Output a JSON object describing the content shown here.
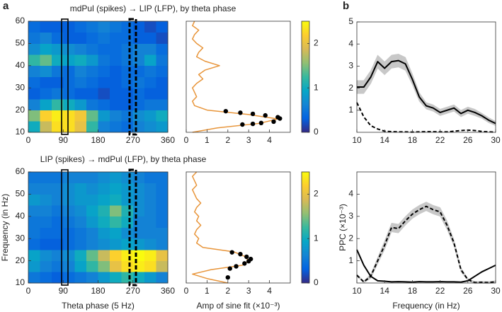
{
  "panel_labels": [
    "a",
    "b"
  ],
  "chart_data": [
    {
      "type": "heatmap",
      "title": "mdPul (spikes) → LIP (LFP), by theta phase",
      "colormap": "parula",
      "x_bins": [
        0,
        30,
        60,
        90,
        120,
        150,
        180,
        210,
        240,
        270,
        300,
        330,
        360
      ],
      "y_bins": [
        10,
        15,
        20,
        25,
        30,
        35,
        40,
        45,
        50,
        55,
        60
      ],
      "z": [
        [
          1.0,
          1.8,
          2.3,
          2.3,
          2.0,
          1.2,
          0.6,
          0.5,
          0.4,
          0.6,
          0.7,
          0.8
        ],
        [
          1.5,
          2.2,
          2.4,
          2.3,
          2.1,
          1.4,
          0.8,
          0.6,
          0.5,
          0.7,
          0.8,
          1.0
        ],
        [
          0.6,
          0.9,
          1.2,
          1.0,
          0.8,
          0.5,
          0.4,
          0.3,
          0.3,
          0.4,
          0.5,
          0.5
        ],
        [
          0.3,
          0.4,
          0.5,
          0.4,
          0.3,
          0.3,
          0.2,
          0.3,
          0.3,
          0.4,
          0.3,
          0.3
        ],
        [
          0.4,
          0.3,
          0.3,
          0.4,
          0.5,
          0.4,
          0.3,
          0.3,
          0.4,
          0.5,
          0.4,
          0.3
        ],
        [
          0.6,
          0.7,
          0.5,
          0.4,
          0.6,
          0.5,
          0.4,
          0.3,
          0.4,
          0.4,
          0.5,
          0.4
        ],
        [
          1.2,
          1.4,
          1.0,
          0.9,
          1.0,
          0.8,
          0.5,
          0.4,
          0.5,
          0.6,
          0.9,
          0.5
        ],
        [
          0.7,
          0.9,
          0.8,
          0.7,
          0.6,
          0.5,
          0.4,
          0.4,
          0.5,
          0.6,
          0.6,
          0.4
        ],
        [
          0.5,
          0.6,
          0.4,
          0.3,
          0.3,
          0.4,
          0.5,
          0.4,
          0.4,
          0.3,
          0.3,
          0.2
        ],
        [
          0.4,
          0.3,
          0.3,
          0.3,
          0.4,
          0.5,
          0.6,
          0.5,
          0.4,
          0.3,
          0.2,
          0.3
        ]
      ],
      "xlim": [
        0,
        360
      ],
      "xticks": [
        0,
        90,
        180,
        270,
        360
      ],
      "ylim": [
        10,
        60
      ],
      "yticks": [
        10,
        20,
        30,
        40,
        50,
        60
      ],
      "clim": [
        0,
        2.5
      ],
      "cticks": [
        0,
        1,
        2
      ]
    },
    {
      "type": "line",
      "orientation": "horizontal",
      "y": [
        10,
        12,
        14,
        16,
        18,
        20,
        22,
        24,
        26,
        28,
        30,
        32,
        34,
        36,
        38,
        40,
        42,
        44,
        46,
        48,
        50,
        52,
        54,
        56,
        58,
        60
      ],
      "series": [
        {
          "color": "#e8953a",
          "values": [
            0.3,
            1.5,
            3.5,
            4.4,
            3.0,
            1.0,
            0.4,
            0.3,
            0.5,
            0.4,
            0.3,
            0.5,
            0.8,
            0.6,
            0.9,
            1.6,
            0.9,
            0.5,
            0.6,
            0.8,
            0.5,
            0.3,
            0.4,
            0.6,
            0.3,
            0.4
          ]
        }
      ],
      "points": {
        "color": "#000000",
        "values": [
          2.7,
          3.2,
          3.6,
          4.2,
          4.5,
          4.4,
          3.8,
          3.2,
          2.6,
          1.9
        ],
        "y": [
          13.5,
          13.8,
          14.2,
          14.8,
          16.2,
          16.8,
          17.6,
          18.3,
          18.8,
          19.5
        ]
      },
      "xlim": [
        0,
        5
      ],
      "xticks": [
        0,
        1,
        2,
        3,
        4
      ],
      "ylim": [
        10,
        60
      ]
    },
    {
      "type": "heatmap",
      "title": "LIP (spikes) → mdPul (LFP), by theta phase",
      "colormap": "parula",
      "xlabel": "Theta phase (5 Hz)",
      "ylabel": "Frequency (in Hz)",
      "x_bins": [
        0,
        30,
        60,
        90,
        120,
        150,
        180,
        210,
        240,
        270,
        300,
        330,
        360
      ],
      "y_bins": [
        10,
        15,
        20,
        25,
        30,
        35,
        40,
        45,
        50,
        55,
        60
      ],
      "z": [
        [
          0.5,
          0.4,
          0.3,
          0.4,
          0.5,
          0.6,
          0.8,
          1.0,
          1.2,
          1.0,
          0.8,
          0.6
        ],
        [
          0.8,
          0.6,
          0.5,
          0.6,
          0.9,
          1.2,
          1.5,
          2.0,
          2.3,
          2.4,
          2.3,
          1.8
        ],
        [
          0.9,
          0.7,
          0.6,
          0.7,
          1.0,
          1.4,
          1.8,
          2.2,
          2.4,
          2.5,
          2.4,
          2.0
        ],
        [
          0.4,
          0.3,
          0.3,
          0.4,
          0.5,
          0.6,
          0.7,
          0.8,
          0.9,
          0.8,
          0.7,
          0.6
        ],
        [
          0.5,
          0.4,
          0.4,
          0.4,
          0.5,
          0.6,
          0.8,
          0.9,
          0.7,
          0.6,
          0.6,
          0.6
        ],
        [
          0.5,
          0.5,
          0.4,
          0.5,
          0.6,
          0.8,
          1.0,
          1.2,
          1.0,
          0.6,
          0.6,
          0.5
        ],
        [
          0.6,
          0.6,
          0.5,
          0.6,
          0.7,
          0.9,
          1.1,
          1.5,
          1.1,
          0.7,
          0.6,
          0.5
        ],
        [
          0.8,
          0.7,
          0.6,
          0.7,
          0.8,
          0.8,
          0.9,
          1.0,
          0.8,
          0.7,
          0.6,
          0.5
        ],
        [
          0.6,
          0.6,
          0.6,
          0.7,
          0.8,
          0.7,
          0.8,
          0.9,
          0.8,
          0.7,
          0.6,
          0.5
        ],
        [
          0.5,
          0.5,
          0.5,
          0.6,
          0.6,
          0.6,
          0.7,
          0.8,
          0.7,
          0.6,
          0.5,
          0.5
        ]
      ],
      "xlim": [
        0,
        360
      ],
      "xticks": [
        0,
        90,
        180,
        270,
        360
      ],
      "ylim": [
        10,
        60
      ],
      "yticks": [
        10,
        20,
        30,
        40,
        50,
        60
      ],
      "clim": [
        0,
        2.5
      ],
      "cticks": [
        0,
        1,
        2
      ]
    },
    {
      "type": "line",
      "orientation": "horizontal",
      "xlabel": "Amp of sine fit (×10⁻³)",
      "y": [
        10,
        12,
        14,
        16,
        18,
        20,
        22,
        24,
        26,
        28,
        30,
        32,
        34,
        36,
        38,
        40,
        42,
        44,
        46,
        48,
        50,
        52,
        54,
        56,
        58,
        60
      ],
      "series": [
        {
          "color": "#e8953a",
          "values": [
            2.0,
            1.0,
            0.3,
            1.2,
            2.7,
            3.0,
            2.8,
            2.3,
            0.8,
            0.5,
            0.6,
            0.4,
            0.5,
            0.7,
            0.5,
            0.6,
            0.4,
            0.5,
            0.7,
            0.5,
            0.4,
            0.3,
            0.5,
            0.4,
            0.3,
            0.5
          ]
        }
      ],
      "points": {
        "color": "#000000",
        "values": [
          2.0,
          2.1,
          2.4,
          2.8,
          3.0,
          3.1,
          2.9,
          2.6,
          2.2
        ],
        "y": [
          12.5,
          16.5,
          17.5,
          18.8,
          19.8,
          20.8,
          21.8,
          23,
          23.8
        ]
      },
      "xlim": [
        0,
        5
      ],
      "xticks": [
        0,
        1,
        2,
        3,
        4
      ],
      "ylim": [
        10,
        60
      ]
    },
    {
      "type": "line",
      "x": [
        10,
        11,
        12,
        13,
        14,
        15,
        16,
        17,
        18,
        19,
        20,
        21,
        22,
        23,
        24,
        25,
        26,
        27,
        28,
        29,
        30
      ],
      "series": [
        {
          "color": "#000000",
          "dash": false,
          "band_color": "#c8c8c8",
          "values": [
            2.05,
            2.05,
            2.5,
            3.2,
            2.9,
            3.2,
            3.25,
            3.1,
            2.4,
            1.6,
            1.2,
            1.1,
            0.9,
            1.0,
            1.1,
            0.85,
            1.0,
            0.9,
            0.75,
            0.55,
            0.4
          ],
          "error": [
            0.3,
            0.3,
            0.3,
            0.3,
            0.3,
            0.3,
            0.3,
            0.3,
            0.25,
            0.2,
            0.15,
            0.15,
            0.15,
            0.15,
            0.15,
            0.15,
            0.15,
            0.15,
            0.12,
            0.12,
            0.1
          ]
        },
        {
          "color": "#000000",
          "dash": true,
          "values": [
            1.35,
            0.7,
            0.3,
            0.15,
            0.05,
            0.03,
            0.02,
            0.02,
            0.01,
            0.02,
            0.03,
            0.03,
            0.02,
            0.02,
            0.05,
            0.08,
            0.1,
            0.08,
            0.04,
            0.02,
            0.01
          ]
        }
      ],
      "xlim": [
        10,
        30
      ],
      "xticks": [
        10,
        14,
        18,
        22,
        26,
        30
      ],
      "ylim": [
        0,
        5
      ],
      "yticks": [
        1,
        2,
        3,
        4,
        5
      ]
    },
    {
      "type": "line",
      "xlabel": "Frequency (in Hz)",
      "ylabel": "PPC (×10⁻³)",
      "x": [
        10,
        11,
        12,
        13,
        14,
        15,
        16,
        17,
        18,
        19,
        20,
        21,
        22,
        23,
        24,
        25,
        26,
        27,
        28,
        29,
        30
      ],
      "series": [
        {
          "color": "#000000",
          "dash": true,
          "band_color": "#c8c8c8",
          "values": [
            0.35,
            0.05,
            0.3,
            1.0,
            1.7,
            2.5,
            2.45,
            2.8,
            3.1,
            3.3,
            3.45,
            3.3,
            3.2,
            2.6,
            1.8,
            0.6,
            0.15,
            0.02,
            0.03,
            0.02,
            0.05
          ],
          "error": [
            0.05,
            0.05,
            0.1,
            0.15,
            0.2,
            0.2,
            0.2,
            0.2,
            0.2,
            0.2,
            0.2,
            0.2,
            0.2,
            0.2,
            0.15,
            0.1,
            0.05,
            0.05,
            0.05,
            0.05,
            0.05
          ]
        },
        {
          "color": "#000000",
          "dash": false,
          "values": [
            1.5,
            0.8,
            0.3,
            0.1,
            0.08,
            0.05,
            0.06,
            0.05,
            0.04,
            0.06,
            0.05,
            0.05,
            0.06,
            0.05,
            0.05,
            0.04,
            0.1,
            0.3,
            0.5,
            0.65,
            0.8
          ]
        }
      ],
      "xlim": [
        10,
        30
      ],
      "xticks": [
        10,
        14,
        18,
        22,
        26,
        30
      ],
      "ylim": [
        0,
        5
      ],
      "yticks": [
        1,
        2,
        3,
        4
      ]
    }
  ]
}
